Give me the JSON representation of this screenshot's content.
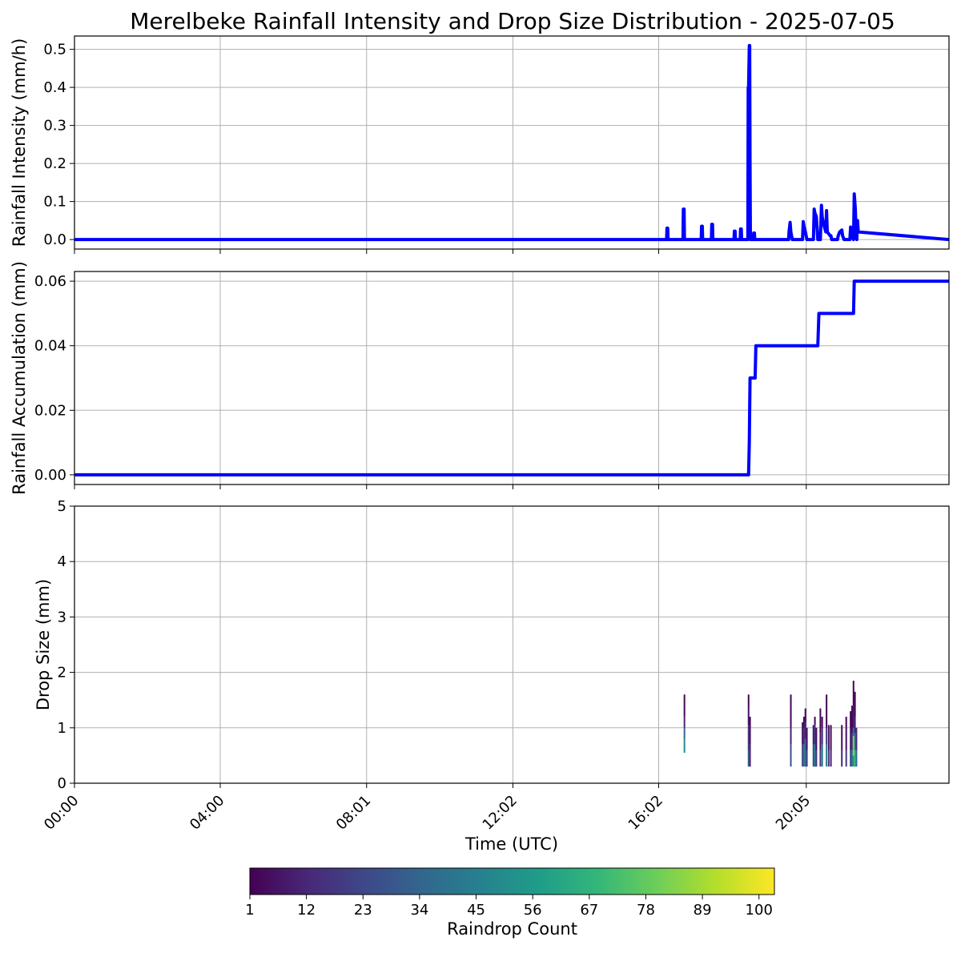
{
  "title": "Merelbeke Rainfall Intensity and Drop Size Distribution - 2025-07-05",
  "colors": {
    "line": "#0000ff",
    "grid": "#b0b0b0",
    "axis": "#000000",
    "viridis": [
      "#440154",
      "#482878",
      "#3e4989",
      "#31688e",
      "#26828e",
      "#1f9e89",
      "#35b779",
      "#6ece58",
      "#b5de2b",
      "#fde725"
    ]
  },
  "chart_data": [
    {
      "type": "line",
      "ylabel": "Rainfall Intensity (mm/h)",
      "xlabel": "",
      "xlim_hours": [
        0,
        24
      ],
      "ylim": [
        -0.025,
        0.535
      ],
      "yticks": [
        0.0,
        0.1,
        0.2,
        0.3,
        0.4,
        0.5
      ],
      "ytick_labels": [
        "0.0",
        "0.1",
        "0.2",
        "0.3",
        "0.4",
        "0.5"
      ],
      "grid": true,
      "series": [
        {
          "x_hours": [
            0,
            16.25,
            16.26,
            16.28,
            16.29,
            16.7,
            16.71,
            16.73,
            16.74,
            17.2,
            17.21,
            17.23,
            17.24,
            17.48,
            17.49,
            17.51,
            17.52,
            18.1,
            18.11,
            18.13,
            18.14,
            18.27,
            18.28,
            18.3,
            18.31,
            18.48,
            18.49,
            18.5,
            18.52,
            18.53,
            18.54,
            18.55,
            18.63,
            18.64,
            18.66,
            18.67,
            19.6,
            19.61,
            19.64,
            19.66,
            19.7,
            19.98,
            20.0,
            20.02,
            20.06,
            20.1,
            20.28,
            20.3,
            20.32,
            20.36,
            20.38,
            20.4,
            20.47,
            20.5,
            20.52,
            20.56,
            20.62,
            20.64,
            20.66,
            20.74,
            20.76,
            20.78,
            20.94,
            20.96,
            21.0,
            21.06,
            21.08,
            21.12,
            21.28,
            21.3,
            21.32,
            21.38,
            21.4,
            21.43,
            21.45,
            21.47,
            21.49,
            21.51,
            24
          ],
          "y": [
            0,
            0,
            0.03,
            0.03,
            0,
            0,
            0.08,
            0.08,
            0,
            0,
            0.035,
            0.035,
            0,
            0,
            0.04,
            0.04,
            0,
            0,
            0.022,
            0.022,
            0,
            0,
            0.028,
            0.028,
            0,
            0,
            0.4,
            0.4,
            0.51,
            0.51,
            0.2,
            0,
            0,
            0.017,
            0.017,
            0,
            0,
            0.02,
            0.045,
            0.02,
            0,
            0,
            0.047,
            0.035,
            0.02,
            0,
            0,
            0.08,
            0.07,
            0.06,
            0.03,
            0,
            0,
            0.09,
            0.06,
            0.04,
            0.02,
            0.076,
            0.02,
            0.01,
            0.01,
            0,
            0,
            0.01,
            0.02,
            0.025,
            0.01,
            0,
            0,
            0.033,
            0.01,
            0,
            0.12,
            0.08,
            0.01,
            0,
            0.05,
            0.02,
            0
          ]
        }
      ]
    },
    {
      "type": "line",
      "ylabel": "Rainfall Accumulation (mm)",
      "xlabel": "",
      "xlim_hours": [
        0,
        24
      ],
      "ylim": [
        -0.003,
        0.063
      ],
      "yticks": [
        0.0,
        0.02,
        0.04,
        0.06
      ],
      "ytick_labels": [
        "0.00",
        "0.02",
        "0.04",
        "0.06"
      ],
      "grid": true,
      "series": [
        {
          "x_hours": [
            0,
            18.5,
            18.52,
            18.54,
            18.56,
            18.68,
            18.7,
            20.4,
            20.43,
            21.38,
            21.4,
            24
          ],
          "y": [
            0,
            0,
            0.01,
            0.03,
            0.03,
            0.03,
            0.04,
            0.04,
            0.05,
            0.05,
            0.06,
            0.06
          ]
        }
      ]
    },
    {
      "type": "heatmap",
      "ylabel": "Drop Size (mm)",
      "xlabel": "Time (UTC)",
      "xlim_hours": [
        0,
        24
      ],
      "ylim": [
        0,
        5
      ],
      "yticks": [
        0,
        1,
        2,
        3,
        4,
        5
      ],
      "ytick_labels": [
        "0",
        "1",
        "2",
        "3",
        "4",
        "5"
      ],
      "xticks_hours": [
        0,
        4,
        8.017,
        12.033,
        16.033,
        20.083
      ],
      "xtick_labels": [
        "00:00",
        "04:00",
        "08:01",
        "12:02",
        "16:02",
        "20:05"
      ],
      "grid": true,
      "columns": [
        {
          "t": 16.74,
          "cells": [
            [
              0.55,
              0.8,
              50
            ],
            [
              0.8,
              1.0,
              35
            ],
            [
              1.0,
              1.2,
              12
            ],
            [
              1.2,
              1.6,
              3
            ]
          ]
        },
        {
          "t": 18.5,
          "cells": [
            [
              0.3,
              0.6,
              30
            ],
            [
              0.6,
              1.05,
              18
            ],
            [
              1.05,
              1.35,
              6
            ],
            [
              1.35,
              1.6,
              2
            ]
          ]
        },
        {
          "t": 18.54,
          "cells": [
            [
              0.3,
              0.7,
              12
            ],
            [
              0.7,
              1.0,
              5
            ],
            [
              1.0,
              1.2,
              1
            ]
          ]
        },
        {
          "t": 19.66,
          "cells": [
            [
              0.3,
              0.7,
              28
            ],
            [
              0.7,
              1.0,
              10
            ],
            [
              1.0,
              1.6,
              2
            ]
          ]
        },
        {
          "t": 19.98,
          "cells": [
            [
              0.3,
              0.7,
              25
            ],
            [
              0.7,
              1.1,
              8
            ]
          ]
        },
        {
          "t": 20.02,
          "cells": [
            [
              0.3,
              0.7,
              40
            ],
            [
              0.7,
              1.0,
              15
            ],
            [
              1.0,
              1.2,
              3
            ]
          ]
        },
        {
          "t": 20.06,
          "cells": [
            [
              0.3,
              0.8,
              35
            ],
            [
              0.8,
              1.1,
              10
            ],
            [
              1.1,
              1.35,
              2
            ]
          ]
        },
        {
          "t": 20.1,
          "cells": [
            [
              0.3,
              0.6,
              20
            ],
            [
              0.6,
              1.0,
              6
            ]
          ]
        },
        {
          "t": 20.28,
          "cells": [
            [
              0.3,
              0.7,
              22
            ],
            [
              0.7,
              1.05,
              8
            ]
          ]
        },
        {
          "t": 20.32,
          "cells": [
            [
              0.3,
              0.7,
              45
            ],
            [
              0.7,
              1.05,
              20
            ],
            [
              1.05,
              1.2,
              3
            ]
          ]
        },
        {
          "t": 20.36,
          "cells": [
            [
              0.3,
              0.6,
              18
            ],
            [
              0.6,
              1.0,
              6
            ]
          ]
        },
        {
          "t": 20.47,
          "cells": [
            [
              0.3,
              0.6,
              20
            ],
            [
              0.6,
              0.9,
              8
            ],
            [
              0.9,
              1.35,
              2
            ]
          ]
        },
        {
          "t": 20.52,
          "cells": [
            [
              0.3,
              0.7,
              40
            ],
            [
              0.7,
              1.0,
              14
            ],
            [
              1.0,
              1.2,
              3
            ]
          ]
        },
        {
          "t": 20.64,
          "cells": [
            [
              0.3,
              0.7,
              45
            ],
            [
              0.7,
              1.0,
              20
            ],
            [
              1.0,
              1.6,
              2
            ]
          ]
        },
        {
          "t": 20.7,
          "cells": [
            [
              0.3,
              0.6,
              15
            ],
            [
              0.6,
              1.05,
              5
            ]
          ]
        },
        {
          "t": 20.76,
          "cells": [
            [
              0.3,
              0.6,
              10
            ],
            [
              0.6,
              1.05,
              3
            ]
          ]
        },
        {
          "t": 21.06,
          "cells": [
            [
              0.3,
              0.6,
              12
            ],
            [
              0.6,
              1.05,
              4
            ]
          ]
        },
        {
          "t": 21.18,
          "cells": [
            [
              0.3,
              0.6,
              18
            ],
            [
              0.6,
              1.0,
              5
            ],
            [
              1.0,
              1.2,
              2
            ]
          ]
        },
        {
          "t": 21.3,
          "cells": [
            [
              0.3,
              0.6,
              25
            ],
            [
              0.6,
              1.0,
              10
            ],
            [
              1.0,
              1.3,
              2
            ]
          ]
        },
        {
          "t": 21.34,
          "cells": [
            [
              0.3,
              0.6,
              40
            ],
            [
              0.6,
              0.9,
              15
            ],
            [
              0.9,
              1.4,
              3
            ]
          ]
        },
        {
          "t": 21.38,
          "cells": [
            [
              0.3,
              0.5,
              55
            ],
            [
              0.5,
              0.85,
              85
            ],
            [
              0.85,
              1.0,
              40
            ],
            [
              1.0,
              1.4,
              8
            ],
            [
              1.4,
              1.85,
              2
            ]
          ]
        },
        {
          "t": 21.42,
          "cells": [
            [
              0.3,
              0.6,
              70
            ],
            [
              0.6,
              0.9,
              45
            ],
            [
              0.9,
              1.2,
              10
            ],
            [
              1.2,
              1.65,
              2
            ]
          ]
        },
        {
          "t": 21.46,
          "cells": [
            [
              0.3,
              0.6,
              35
            ],
            [
              0.6,
              1.0,
              12
            ]
          ]
        }
      ]
    },
    {
      "type": "colorbar",
      "label": "Raindrop Count",
      "range": [
        1,
        103
      ],
      "ticks": [
        1,
        12,
        23,
        34,
        45,
        56,
        67,
        78,
        89,
        100
      ],
      "tick_labels": [
        "1",
        "12",
        "23",
        "34",
        "45",
        "56",
        "67",
        "78",
        "89",
        "100"
      ]
    }
  ]
}
